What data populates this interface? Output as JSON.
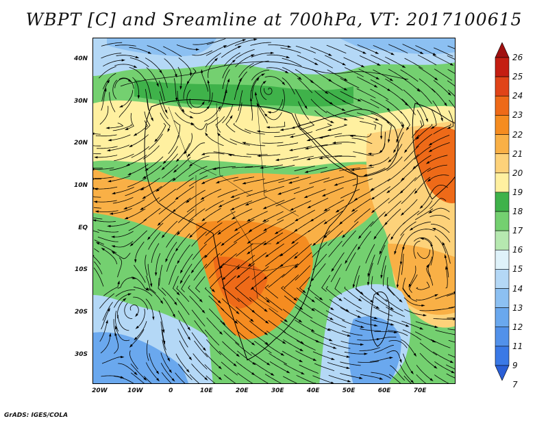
{
  "title": "WBPT [C] and Sreamline at 700hPa, VT: 2017100615",
  "credit": "GrADS: IGES/COLA",
  "map": {
    "lat_labels": [
      "40N",
      "30N",
      "20N",
      "10N",
      "EQ",
      "10S",
      "20S",
      "30S"
    ],
    "lat_values": [
      40,
      30,
      20,
      10,
      0,
      -10,
      -20,
      -30
    ],
    "lon_labels": [
      "20W",
      "10W",
      "0",
      "10E",
      "20E",
      "30E",
      "40E",
      "50E",
      "60E",
      "70E"
    ],
    "lon_values": [
      -20,
      -10,
      0,
      10,
      20,
      30,
      40,
      50,
      60,
      70
    ],
    "extent": {
      "lon_min": -22,
      "lon_max": 80,
      "lat_min": -37,
      "lat_max": 45
    }
  },
  "colorbar": {
    "labels": [
      "7",
      "9",
      "11",
      "12",
      "13",
      "14",
      "15",
      "16",
      "17",
      "18",
      "19",
      "20",
      "21",
      "22",
      "23",
      "24",
      "25",
      "26"
    ],
    "colors": [
      "#2a5fd6",
      "#3a79e6",
      "#5291ea",
      "#6aa8ee",
      "#8cc0f2",
      "#b4d8f6",
      "#dff2fa",
      "#b6e8b0",
      "#74d070",
      "#3fb24a",
      "#fff0a0",
      "#fdd27a",
      "#f9b046",
      "#f58c20",
      "#ee6a18",
      "#e04418",
      "#c41e12",
      "#a01010"
    ]
  },
  "palette": {
    "deep_blue": "#3a79e6",
    "mid_blue": "#6aa8ee",
    "light_blue": "#b4d8f6",
    "pale_green": "#b6e8b0",
    "green": "#74d070",
    "dark_green": "#3fb24a",
    "yellow": "#fff0a0",
    "light_orange": "#fdd27a",
    "orange": "#f9b046",
    "dark_orange": "#f58c20",
    "red_orange": "#ee6a18",
    "red": "#e04418"
  }
}
